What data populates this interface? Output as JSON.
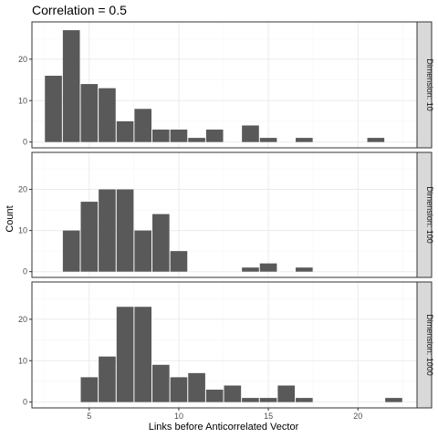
{
  "chart_data": {
    "type": "bar",
    "title": "Correlation = 0.5",
    "xlabel": "Links before Anticorrelated Vector",
    "ylabel": "Count",
    "xlim": [
      1.8,
      23.3
    ],
    "ylim": [
      -1.4,
      29
    ],
    "x_ticks": [
      5,
      10,
      15,
      20
    ],
    "y_ticks": [
      0,
      10,
      20
    ],
    "grid": true,
    "facets": [
      {
        "strip": "Dimension: 10",
        "bins": [
          {
            "x": 3,
            "count": 16
          },
          {
            "x": 4,
            "count": 27
          },
          {
            "x": 5,
            "count": 14
          },
          {
            "x": 6,
            "count": 13
          },
          {
            "x": 7,
            "count": 5
          },
          {
            "x": 8,
            "count": 8
          },
          {
            "x": 9,
            "count": 3
          },
          {
            "x": 10,
            "count": 3
          },
          {
            "x": 11,
            "count": 1
          },
          {
            "x": 12,
            "count": 3
          },
          {
            "x": 14,
            "count": 4
          },
          {
            "x": 15,
            "count": 1
          },
          {
            "x": 17,
            "count": 1
          },
          {
            "x": 21,
            "count": 1
          }
        ]
      },
      {
        "strip": "Dimension: 100",
        "bins": [
          {
            "x": 4,
            "count": 10
          },
          {
            "x": 5,
            "count": 17
          },
          {
            "x": 6,
            "count": 20
          },
          {
            "x": 7,
            "count": 20
          },
          {
            "x": 8,
            "count": 10
          },
          {
            "x": 9,
            "count": 14
          },
          {
            "x": 10,
            "count": 5
          },
          {
            "x": 14,
            "count": 1
          },
          {
            "x": 15,
            "count": 2
          },
          {
            "x": 17,
            "count": 1
          }
        ]
      },
      {
        "strip": "Dimension: 1000",
        "bins": [
          {
            "x": 5,
            "count": 6
          },
          {
            "x": 6,
            "count": 11
          },
          {
            "x": 7,
            "count": 23
          },
          {
            "x": 8,
            "count": 23
          },
          {
            "x": 9,
            "count": 9
          },
          {
            "x": 10,
            "count": 6
          },
          {
            "x": 11,
            "count": 7
          },
          {
            "x": 12,
            "count": 3
          },
          {
            "x": 13,
            "count": 4
          },
          {
            "x": 14,
            "count": 1
          },
          {
            "x": 15,
            "count": 1
          },
          {
            "x": 16,
            "count": 4
          },
          {
            "x": 17,
            "count": 1
          },
          {
            "x": 22,
            "count": 1
          }
        ]
      }
    ],
    "colors": {
      "bar": "#595959",
      "panel_border": "#333333",
      "grid_major": "#ebebeb",
      "grid_minor": "#f5f5f5",
      "strip_fill": "#d9d9d9"
    }
  }
}
